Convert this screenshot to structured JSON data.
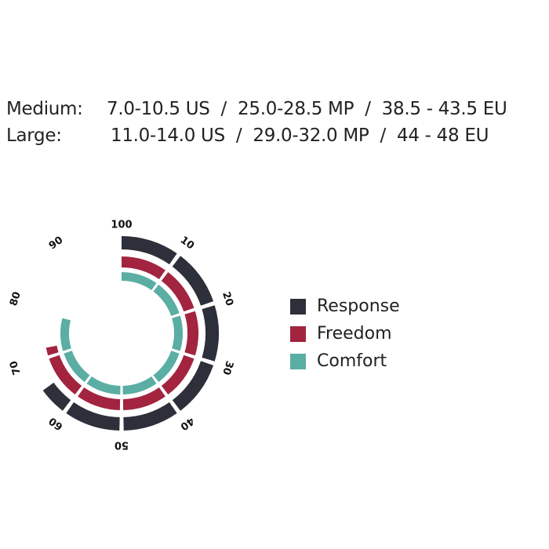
{
  "sizes": [
    {
      "label": "Medium:",
      "value": "7.0-10.5 US  /  25.0-28.5 MP  /  38.5 - 43.5 EU"
    },
    {
      "label": "Large:",
      "value": "11.0-14.0 US  /  29.0-32.0 MP  /  44 - 48 EU"
    }
  ],
  "chart_data": {
    "type": "radial-bar",
    "scale": [
      0,
      100
    ],
    "tick_labels": [
      "10",
      "20",
      "30",
      "40",
      "50",
      "60",
      "70",
      "80",
      "90",
      "100"
    ],
    "legend_position": "right",
    "series": [
      {
        "name": "Response",
        "value": 65,
        "color": "#2d2f3a"
      },
      {
        "name": "Freedom",
        "value": 72,
        "color": "#a3243f"
      },
      {
        "name": "Comfort",
        "value": 79,
        "color": "#5aaea3"
      }
    ]
  }
}
